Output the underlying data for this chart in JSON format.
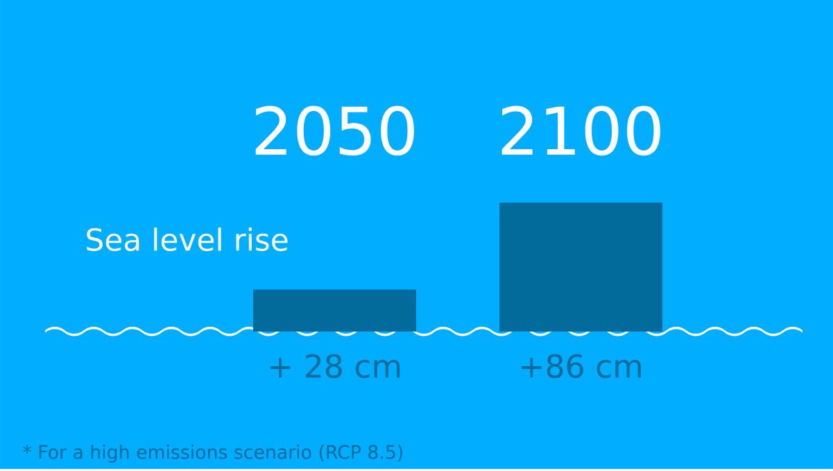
{
  "chart_data": {
    "type": "bar",
    "title": "Sea level rise",
    "categories": [
      "2050",
      "2100"
    ],
    "values": [
      28,
      86
    ],
    "value_labels": [
      "+ 28 cm",
      "+86 cm"
    ],
    "color": "#036a9c",
    "annotations": [
      "* For a high emissions scenario (RCP 8.5)"
    ]
  }
}
